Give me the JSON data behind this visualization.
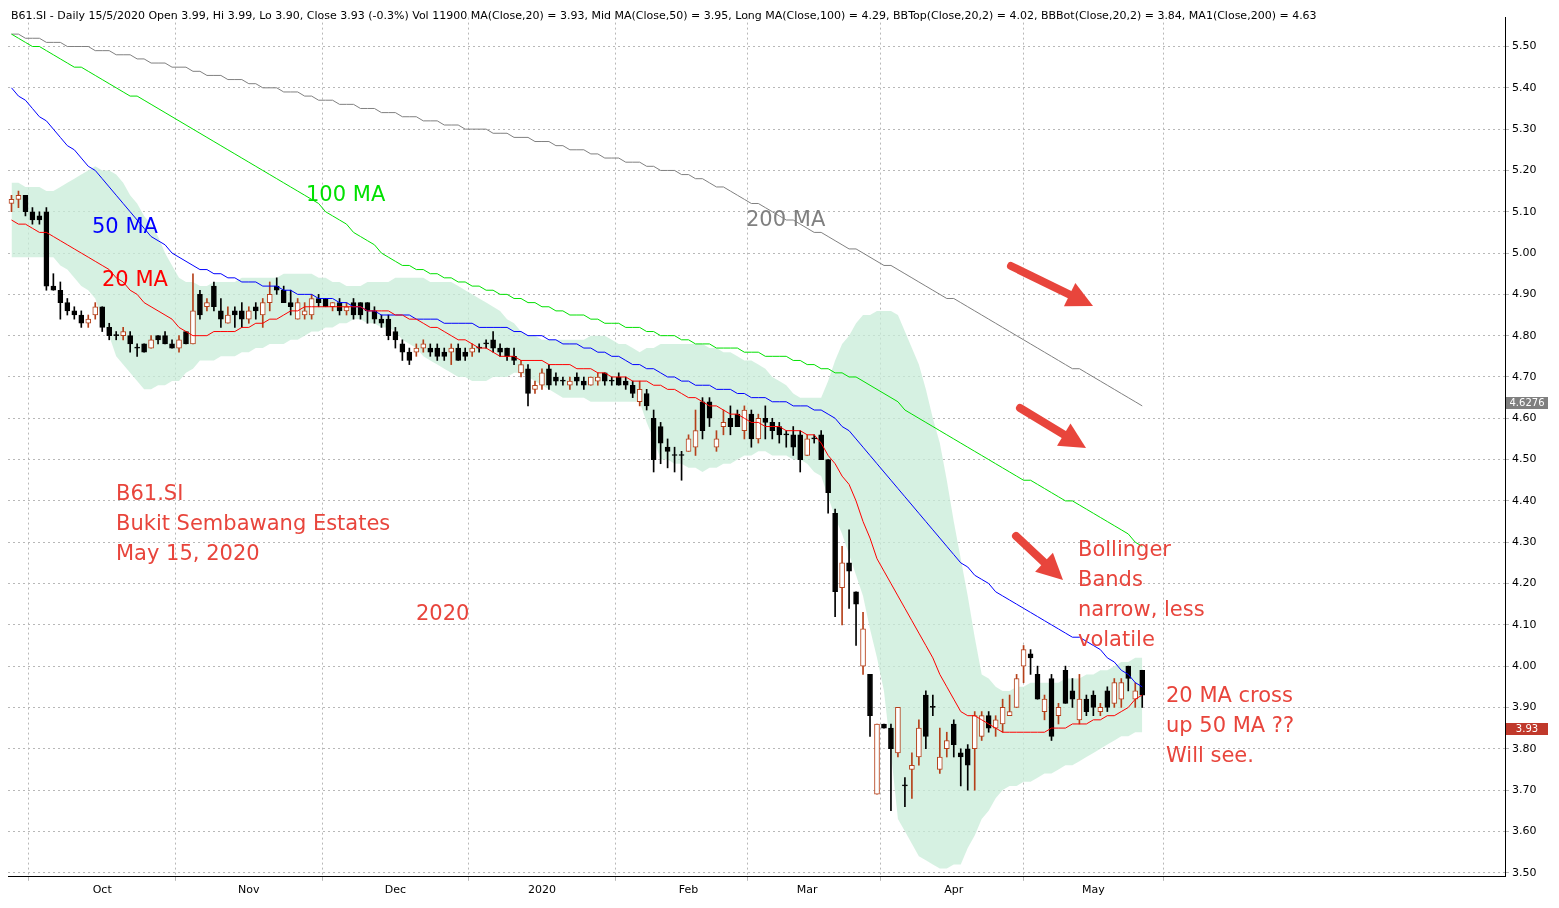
{
  "chart_data": {
    "type": "candlestick",
    "title": "B61.SI - Daily 15/5/2020 Open 3.99, Hi 3.99, Lo 3.90, Close 3.93 (-0.3%) Vol 11900 MA(Close,20) = 3.93, Mid MA(Close,50) = 3.95, Long MA(Close,100) = 4.29, BBTop(Close,20,2) = 4.02, BBBot(Close,20,2) = 3.84, MA1(Close,200) = 4.63",
    "categories": [
      null,
      null,
      null,
      null,
      null,
      null,
      null,
      null,
      null,
      null,
      null,
      null,
      null,
      "Oct",
      null,
      null,
      null,
      null,
      null,
      null,
      null,
      null,
      null,
      null,
      null,
      null,
      null,
      null,
      null,
      null,
      null,
      null,
      null,
      null,
      "Nov",
      null,
      null,
      null,
      null,
      null,
      null,
      null,
      null,
      null,
      null,
      null,
      null,
      null,
      null,
      null,
      null,
      null,
      null,
      null,
      null,
      "Dec",
      null,
      null,
      null,
      null,
      null,
      null,
      null,
      null,
      null,
      null,
      null,
      null,
      null,
      null,
      null,
      null,
      null,
      null,
      null,
      null,
      "2020",
      null,
      null,
      null,
      null,
      null,
      null,
      null,
      null,
      null,
      null,
      null,
      null,
      null,
      null,
      null,
      null,
      null,
      null,
      null,
      null,
      "Feb",
      null,
      null,
      null,
      null,
      null,
      null,
      null,
      null,
      null,
      null,
      null,
      null,
      null,
      null,
      null,
      null,
      "Mar",
      null,
      null,
      null,
      null,
      null,
      null,
      null,
      null,
      null,
      null,
      null,
      null,
      null,
      null,
      null,
      null,
      null,
      null,
      null,
      null,
      "Apr",
      null,
      null,
      null,
      null,
      null,
      null,
      null,
      null,
      null,
      null,
      null,
      null,
      null,
      null,
      null,
      null,
      null,
      null,
      null,
      "May",
      null,
      null,
      null,
      null,
      null,
      null,
      null
    ],
    "series": [
      {
        "ohlc": [
          [
            5.12,
            5.14,
            5.1,
            5.13
          ],
          [
            5.13,
            5.15,
            5.11,
            5.14
          ],
          [
            5.14,
            5.14,
            5.09,
            5.1
          ],
          [
            5.1,
            5.11,
            5.07,
            5.08
          ],
          [
            5.09,
            5.1,
            5.07,
            5.08
          ],
          [
            5.1,
            5.11,
            4.91,
            4.92
          ],
          [
            4.92,
            4.95,
            4.91,
            4.91
          ],
          [
            4.91,
            4.93,
            4.84,
            4.88
          ],
          [
            4.88,
            4.89,
            4.85,
            4.86
          ],
          [
            4.86,
            4.87,
            4.84,
            4.85
          ],
          [
            4.85,
            4.86,
            4.82,
            4.83
          ],
          [
            4.83,
            4.85,
            4.82,
            4.84
          ],
          [
            4.85,
            4.88,
            4.84,
            4.87
          ],
          [
            4.87,
            4.87,
            4.81,
            4.82
          ],
          [
            4.82,
            4.83,
            4.79,
            4.8
          ],
          [
            4.8,
            4.81,
            4.79,
            4.8
          ],
          [
            4.8,
            4.82,
            4.79,
            4.81
          ],
          [
            4.8,
            4.81,
            4.76,
            4.78
          ],
          [
            4.77,
            4.78,
            4.75,
            4.77
          ],
          [
            4.78,
            4.78,
            4.76,
            4.76
          ],
          [
            4.77,
            4.8,
            4.77,
            4.79
          ],
          [
            4.8,
            4.8,
            4.78,
            4.79
          ],
          [
            4.8,
            4.81,
            4.78,
            4.78
          ],
          [
            4.78,
            4.79,
            4.77,
            4.77
          ],
          [
            4.77,
            4.8,
            4.76,
            4.79
          ],
          [
            4.81,
            4.81,
            4.78,
            4.78
          ],
          [
            4.78,
            4.95,
            4.78,
            4.86
          ],
          [
            4.9,
            4.91,
            4.84,
            4.85
          ],
          [
            4.87,
            4.89,
            4.86,
            4.88
          ],
          [
            4.92,
            4.93,
            4.86,
            4.87
          ],
          [
            4.86,
            4.89,
            4.82,
            4.84
          ],
          [
            4.83,
            4.87,
            4.83,
            4.85
          ],
          [
            4.86,
            4.87,
            4.82,
            4.85
          ],
          [
            4.86,
            4.88,
            4.82,
            4.84
          ],
          [
            4.84,
            4.87,
            4.83,
            4.86
          ],
          [
            4.87,
            4.88,
            4.84,
            4.86
          ],
          [
            4.85,
            4.89,
            4.82,
            4.88
          ],
          [
            4.88,
            4.93,
            4.86,
            4.9
          ],
          [
            4.92,
            4.94,
            4.9,
            4.91
          ],
          [
            4.91,
            4.92,
            4.88,
            4.88
          ],
          [
            4.88,
            4.91,
            4.85,
            4.87
          ],
          [
            4.84,
            4.89,
            4.84,
            4.88
          ],
          [
            4.85,
            4.88,
            4.84,
            4.86
          ],
          [
            4.85,
            4.9,
            4.84,
            4.89
          ],
          [
            4.89,
            4.9,
            4.87,
            4.88
          ],
          [
            4.89,
            4.89,
            4.87,
            4.87
          ],
          [
            4.87,
            4.88,
            4.86,
            4.88
          ],
          [
            4.88,
            4.89,
            4.85,
            4.86
          ],
          [
            4.86,
            4.88,
            4.85,
            4.87
          ],
          [
            4.88,
            4.89,
            4.84,
            4.85
          ],
          [
            4.88,
            4.88,
            4.84,
            4.85
          ],
          [
            4.88,
            4.88,
            4.83,
            4.86
          ],
          [
            4.86,
            4.87,
            4.83,
            4.84
          ],
          [
            4.84,
            4.85,
            4.82,
            4.83
          ],
          [
            4.84,
            4.85,
            4.79,
            4.8
          ],
          [
            4.81,
            4.82,
            4.77,
            4.79
          ],
          [
            4.78,
            4.79,
            4.74,
            4.76
          ],
          [
            4.76,
            4.77,
            4.73,
            4.74
          ],
          [
            4.76,
            4.78,
            4.75,
            4.77
          ],
          [
            4.77,
            4.79,
            4.76,
            4.78
          ],
          [
            4.77,
            4.78,
            4.75,
            4.76
          ],
          [
            4.77,
            4.78,
            4.74,
            4.75
          ],
          [
            4.76,
            4.77,
            4.74,
            4.75
          ],
          [
            4.76,
            4.78,
            4.73,
            4.77
          ],
          [
            4.77,
            4.78,
            4.74,
            4.74
          ],
          [
            4.76,
            4.77,
            4.74,
            4.75
          ],
          [
            4.76,
            4.78,
            4.75,
            4.77
          ],
          [
            4.77,
            4.78,
            4.76,
            4.77
          ],
          [
            4.78,
            4.79,
            4.77,
            4.78
          ],
          [
            4.79,
            4.81,
            4.76,
            4.77
          ],
          [
            4.77,
            4.78,
            4.75,
            4.76
          ],
          [
            4.77,
            4.77,
            4.74,
            4.75
          ],
          [
            4.75,
            4.77,
            4.73,
            4.74
          ],
          [
            4.71,
            4.74,
            4.7,
            4.73
          ],
          [
            4.72,
            4.73,
            4.63,
            4.66
          ],
          [
            4.67,
            4.69,
            4.66,
            4.68
          ],
          [
            4.68,
            4.72,
            4.67,
            4.71
          ],
          [
            4.72,
            4.73,
            4.67,
            4.68
          ],
          [
            4.7,
            4.71,
            4.68,
            4.69
          ],
          [
            4.69,
            4.7,
            4.68,
            4.69
          ],
          [
            4.68,
            4.7,
            4.67,
            4.69
          ],
          [
            4.7,
            4.71,
            4.68,
            4.69
          ],
          [
            4.69,
            4.7,
            4.67,
            4.68
          ],
          [
            4.68,
            4.7,
            4.68,
            4.7
          ],
          [
            4.69,
            4.71,
            4.68,
            4.7
          ],
          [
            4.71,
            4.71,
            4.68,
            4.69
          ],
          [
            4.69,
            4.7,
            4.68,
            4.69
          ],
          [
            4.7,
            4.71,
            4.68,
            4.68
          ],
          [
            4.69,
            4.7,
            4.67,
            4.68
          ],
          [
            4.68,
            4.69,
            4.65,
            4.66
          ],
          [
            4.64,
            4.69,
            4.63,
            4.67
          ],
          [
            4.66,
            4.67,
            4.62,
            4.63
          ],
          [
            4.6,
            4.62,
            4.47,
            4.5
          ],
          [
            4.58,
            4.59,
            4.49,
            4.54
          ],
          [
            4.53,
            4.55,
            4.48,
            4.52
          ],
          [
            4.51,
            4.53,
            4.47,
            4.51
          ],
          [
            4.51,
            4.52,
            4.45,
            4.51
          ],
          [
            4.52,
            4.56,
            4.52,
            4.55
          ],
          [
            4.53,
            4.62,
            4.51,
            4.57
          ],
          [
            4.64,
            4.65,
            4.55,
            4.57
          ],
          [
            4.64,
            4.65,
            4.58,
            4.6
          ],
          [
            4.53,
            4.57,
            4.52,
            4.55
          ],
          [
            4.58,
            4.62,
            4.56,
            4.59
          ],
          [
            4.6,
            4.63,
            4.56,
            4.58
          ],
          [
            4.61,
            4.62,
            4.58,
            4.58
          ],
          [
            4.57,
            4.63,
            4.55,
            4.62
          ],
          [
            4.61,
            4.62,
            4.53,
            4.55
          ],
          [
            4.55,
            4.61,
            4.54,
            4.6
          ],
          [
            4.6,
            4.63,
            4.55,
            4.59
          ],
          [
            4.59,
            4.6,
            4.55,
            4.57
          ],
          [
            4.58,
            4.59,
            4.54,
            4.56
          ],
          [
            4.56,
            4.57,
            4.53,
            4.56
          ],
          [
            4.56,
            4.58,
            4.51,
            4.53
          ],
          [
            4.56,
            4.57,
            4.47,
            4.5
          ],
          [
            4.51,
            4.56,
            4.51,
            4.55
          ],
          [
            4.55,
            4.56,
            4.54,
            4.55
          ],
          [
            4.56,
            4.57,
            4.5,
            4.5
          ],
          [
            4.5,
            4.5,
            4.37,
            4.42
          ],
          [
            4.37,
            4.38,
            4.12,
            4.18
          ],
          [
            4.19,
            4.29,
            4.1,
            4.25
          ],
          [
            4.25,
            4.33,
            4.14,
            4.23
          ],
          [
            4.18,
            4.18,
            4.05,
            4.15
          ],
          [
            4.0,
            4.13,
            3.98,
            4.09
          ],
          [
            3.98,
            3.98,
            3.83,
            3.88
          ],
          [
            3.69,
            3.86,
            3.69,
            3.86
          ],
          [
            3.86,
            3.86,
            3.85,
            3.85
          ],
          [
            3.85,
            3.86,
            3.65,
            3.8
          ],
          [
            3.79,
            3.9,
            3.78,
            3.9
          ],
          [
            3.71,
            3.73,
            3.66,
            3.71
          ],
          [
            3.75,
            3.79,
            3.68,
            3.76
          ],
          [
            3.78,
            3.87,
            3.76,
            3.85
          ],
          [
            3.93,
            3.94,
            3.8,
            3.83
          ],
          [
            3.9,
            3.93,
            3.88,
            3.9
          ],
          [
            3.75,
            3.85,
            3.74,
            3.78
          ],
          [
            3.8,
            3.84,
            3.78,
            3.82
          ],
          [
            3.86,
            3.87,
            3.78,
            3.81
          ],
          [
            3.79,
            3.8,
            3.71,
            3.78
          ],
          [
            3.8,
            3.81,
            3.7,
            3.76
          ],
          [
            3.8,
            3.89,
            3.7,
            3.88
          ],
          [
            3.83,
            3.89,
            3.82,
            3.88
          ],
          [
            3.88,
            3.89,
            3.84,
            3.85
          ],
          [
            3.85,
            3.88,
            3.83,
            3.87
          ],
          [
            3.86,
            3.92,
            3.84,
            3.9
          ],
          [
            3.88,
            3.93,
            3.88,
            3.89
          ],
          [
            3.9,
            3.98,
            3.9,
            3.97
          ],
          [
            4.0,
            4.05,
            3.96,
            4.04
          ],
          [
            4.03,
            4.04,
            3.98,
            4.02
          ],
          [
            3.98,
            4.0,
            3.92,
            3.92
          ],
          [
            3.89,
            3.93,
            3.87,
            3.92
          ],
          [
            3.97,
            3.98,
            3.82,
            3.83
          ],
          [
            3.88,
            3.91,
            3.86,
            3.9
          ],
          [
            3.99,
            4.0,
            3.91,
            3.91
          ],
          [
            3.94,
            3.97,
            3.9,
            3.92
          ],
          [
            3.87,
            3.98,
            3.86,
            3.92
          ],
          [
            3.92,
            3.93,
            3.88,
            3.89
          ],
          [
            3.93,
            3.94,
            3.88,
            3.9
          ],
          [
            3.89,
            3.91,
            3.88,
            3.9
          ],
          [
            3.94,
            3.95,
            3.89,
            3.9
          ],
          [
            3.91,
            3.97,
            3.9,
            3.96
          ],
          [
            3.92,
            3.97,
            3.9,
            3.96
          ],
          [
            4.0,
            4.0,
            3.94,
            3.97
          ],
          [
            3.92,
            3.96,
            3.9,
            3.94
          ],
          [
            3.99,
            3.99,
            3.9,
            3.93
          ]
        ],
        "colors": [
          "#b5401a",
          "#b5401a",
          "#000000",
          "#000000",
          "#000000",
          "#000000",
          "#000000",
          "#000000",
          "#000000",
          "#000000",
          "#000000",
          "#b5401a",
          "#b5401a",
          "#000000",
          "#000000",
          "#000000",
          "#b5401a",
          "#000000",
          "#000000",
          "#000000",
          "#b5401a",
          "#000000",
          "#000000",
          "#000000",
          "#b5401a",
          "#000000",
          "#b5401a",
          "#000000",
          "#b5401a",
          "#000000",
          "#000000",
          "#b5401a",
          "#000000",
          "#000000",
          "#b5401a",
          "#000000",
          "#b5401a",
          "#b5401a",
          "#000000",
          "#000000",
          "#000000",
          "#b5401a",
          "#b5401a",
          "#b5401a",
          "#000000",
          "#000000",
          "#b5401a",
          "#000000",
          "#b5401a",
          "#000000",
          "#000000",
          "#000000",
          "#000000",
          "#000000",
          "#000000",
          "#000000",
          "#000000",
          "#000000",
          "#b5401a",
          "#b5401a",
          "#000000",
          "#000000",
          "#000000",
          "#b5401a",
          "#000000",
          "#000000",
          "#b5401a",
          "#000000",
          "#000000",
          "#000000",
          "#000000",
          "#000000",
          "#000000",
          "#b5401a",
          "#000000",
          "#b5401a",
          "#b5401a",
          "#000000",
          "#000000",
          "#000000",
          "#b5401a",
          "#000000",
          "#000000",
          "#b5401a",
          "#b5401a",
          "#000000",
          "#000000",
          "#000000",
          "#000000",
          "#000000",
          "#b5401a",
          "#000000",
          "#000000",
          "#000000",
          "#000000",
          "#000000",
          "#000000",
          "#b5401a",
          "#b5401a",
          "#000000",
          "#000000",
          "#b5401a",
          "#b5401a",
          "#000000",
          "#000000",
          "#b5401a",
          "#000000",
          "#b5401a",
          "#000000",
          "#000000",
          "#000000",
          "#000000",
          "#000000",
          "#000000",
          "#b5401a",
          "#000000",
          "#000000",
          "#000000",
          "#000000",
          "#b5401a",
          "#000000",
          "#000000",
          "#b5401a",
          "#000000",
          "#b5401a",
          "#000000",
          "#000000",
          "#b5401a",
          "#000000",
          "#b5401a",
          "#b5401a",
          "#000000",
          "#000000",
          "#b5401a",
          "#b5401a",
          "#000000",
          "#000000",
          "#000000",
          "#b5401a",
          "#b5401a",
          "#000000",
          "#b5401a",
          "#b5401a",
          "#b5401a",
          "#b5401a",
          "#b5401a",
          "#000000",
          "#000000",
          "#b5401a",
          "#000000",
          "#b5401a",
          "#000000",
          "#000000",
          "#b5401a",
          "#000000",
          "#000000",
          "#b5401a",
          "#000000",
          "#b5401a",
          "#b5401a",
          "#000000",
          "#b5401a",
          "#000000"
        ]
      },
      {
        "type": "line",
        "name": "20 MA",
        "color": "#ff0000",
        "values": [
          5.08,
          5.07,
          5.07,
          5.06,
          5.05,
          5.05,
          5.04,
          5.03,
          5.02,
          5.01,
          5.0,
          4.99,
          4.98,
          4.97,
          4.96,
          4.94,
          4.93,
          4.91,
          4.9,
          4.88,
          4.87,
          4.86,
          4.85,
          4.84,
          4.82,
          4.81,
          4.8,
          4.8,
          4.8,
          4.81,
          4.81,
          4.81,
          4.81,
          4.82,
          4.82,
          4.83,
          4.83,
          4.84,
          4.84,
          4.85,
          4.86,
          4.86,
          4.87,
          4.87,
          4.87,
          4.87,
          4.87,
          4.87,
          4.87,
          4.87,
          4.87,
          4.86,
          4.86,
          4.86,
          4.86,
          4.85,
          4.85,
          4.84,
          4.84,
          4.83,
          4.82,
          4.82,
          4.81,
          4.8,
          4.79,
          4.79,
          4.78,
          4.77,
          4.77,
          4.76,
          4.75,
          4.75,
          4.75,
          4.74,
          4.74,
          4.74,
          4.74,
          4.73,
          4.73,
          4.73,
          4.73,
          4.72,
          4.72,
          4.72,
          4.71,
          4.71,
          4.7,
          4.7,
          4.7,
          4.69,
          4.69,
          4.69,
          4.68,
          4.68,
          4.67,
          4.67,
          4.66,
          4.65,
          4.65,
          4.64,
          4.63,
          4.63,
          4.62,
          4.61,
          4.61,
          4.6,
          4.59,
          4.59,
          4.58,
          4.58,
          4.58,
          4.57,
          4.57,
          4.57,
          4.56,
          4.56,
          4.54,
          4.51,
          4.49,
          4.46,
          4.44,
          4.4,
          4.35,
          4.31,
          4.26,
          4.23,
          4.2,
          4.17,
          4.14,
          4.11,
          4.08,
          4.05,
          4.02,
          3.98,
          3.95,
          3.92,
          3.89,
          3.88,
          3.88,
          3.87,
          3.86,
          3.85,
          3.84,
          3.84,
          3.84,
          3.84,
          3.84,
          3.84,
          3.84,
          3.85,
          3.85,
          3.85,
          3.86,
          3.86,
          3.86,
          3.87,
          3.87,
          3.88,
          3.88,
          3.89,
          3.9,
          3.92,
          3.93
        ],
        "upper": [
          5.17,
          5.17,
          5.16,
          5.16,
          5.16,
          5.15,
          5.15,
          5.16,
          5.17,
          5.18,
          5.19,
          5.2,
          5.21,
          5.2,
          5.2,
          5.19,
          5.17,
          5.14,
          5.12,
          5.09,
          5.07,
          5.04,
          5.0,
          4.97,
          4.94,
          4.93,
          4.93,
          4.92,
          4.92,
          4.93,
          4.93,
          4.93,
          4.93,
          4.94,
          4.94,
          4.94,
          4.94,
          4.94,
          4.94,
          4.95,
          4.95,
          4.95,
          4.95,
          4.95,
          4.94,
          4.94,
          4.93,
          4.93,
          4.92,
          4.92,
          4.92,
          4.93,
          4.93,
          4.93,
          4.93,
          4.94,
          4.94,
          4.94,
          4.94,
          4.94,
          4.93,
          4.93,
          4.93,
          4.93,
          4.92,
          4.91,
          4.9,
          4.89,
          4.88,
          4.87,
          4.86,
          4.84,
          4.83,
          4.81,
          4.8,
          4.8,
          4.79,
          4.79,
          4.79,
          4.79,
          4.79,
          4.79,
          4.79,
          4.8,
          4.8,
          4.8,
          4.79,
          4.78,
          4.78,
          4.77,
          4.76,
          4.77,
          4.77,
          4.78,
          4.78,
          4.78,
          4.78,
          4.78,
          4.78,
          4.78,
          4.77,
          4.77,
          4.76,
          4.76,
          4.75,
          4.74,
          4.74,
          4.73,
          4.72,
          4.7,
          4.69,
          4.68,
          4.66,
          4.65,
          4.65,
          4.65,
          4.65,
          4.69,
          4.74,
          4.78,
          4.8,
          4.83,
          4.85,
          4.85,
          4.86,
          4.86,
          4.86,
          4.85,
          4.81,
          4.77,
          4.73,
          4.67,
          4.6,
          4.54,
          4.45,
          4.35,
          4.26,
          4.17,
          4.07,
          3.98,
          3.97,
          3.95,
          3.94,
          3.94,
          3.95,
          3.95,
          3.96,
          3.96,
          3.96,
          3.96,
          3.96,
          3.97,
          3.97,
          3.97,
          3.98,
          3.98,
          3.99,
          3.99,
          4.0,
          4.01,
          4.01,
          4.02,
          4.02
        ],
        "lower": [
          4.99,
          4.99,
          4.99,
          4.99,
          4.99,
          4.99,
          4.99,
          4.97,
          4.96,
          4.94,
          4.92,
          4.91,
          4.89,
          4.84,
          4.8,
          4.75,
          4.73,
          4.71,
          4.69,
          4.67,
          4.67,
          4.68,
          4.68,
          4.69,
          4.69,
          4.71,
          4.72,
          4.74,
          4.74,
          4.74,
          4.75,
          4.75,
          4.75,
          4.76,
          4.76,
          4.77,
          4.77,
          4.78,
          4.78,
          4.78,
          4.79,
          4.79,
          4.8,
          4.81,
          4.81,
          4.82,
          4.82,
          4.83,
          4.83,
          4.84,
          4.84,
          4.83,
          4.83,
          4.82,
          4.82,
          4.81,
          4.79,
          4.78,
          4.77,
          4.75,
          4.74,
          4.73,
          4.72,
          4.71,
          4.7,
          4.7,
          4.69,
          4.69,
          4.69,
          4.7,
          4.7,
          4.7,
          4.71,
          4.71,
          4.7,
          4.69,
          4.68,
          4.67,
          4.66,
          4.65,
          4.65,
          4.65,
          4.65,
          4.64,
          4.64,
          4.64,
          4.64,
          4.64,
          4.64,
          4.64,
          4.64,
          4.59,
          4.55,
          4.5,
          4.5,
          4.49,
          4.49,
          4.48,
          4.48,
          4.47,
          4.48,
          4.48,
          4.49,
          4.49,
          4.5,
          4.51,
          4.51,
          4.52,
          4.52,
          4.51,
          4.51,
          4.51,
          4.5,
          4.5,
          4.49,
          4.47,
          4.46,
          4.41,
          4.36,
          4.32,
          4.27,
          4.22,
          4.17,
          4.09,
          4.02,
          3.94,
          3.79,
          3.63,
          3.6,
          3.57,
          3.54,
          3.53,
          3.52,
          3.51,
          3.51,
          3.52,
          3.52,
          3.56,
          3.59,
          3.63,
          3.65,
          3.68,
          3.7,
          3.71,
          3.71,
          3.72,
          3.72,
          3.73,
          3.74,
          3.74,
          3.75,
          3.76,
          3.76,
          3.77,
          3.78,
          3.79,
          3.8,
          3.81,
          3.82,
          3.83,
          3.83,
          3.84,
          3.84
        ]
      },
      {
        "type": "line",
        "name": "50 MA",
        "color": "#0000ff",
        "values": [
          5.4,
          5.38,
          5.37,
          5.35,
          5.33,
          5.32,
          5.3,
          5.28,
          5.26,
          5.25,
          5.23,
          5.21,
          5.2,
          5.18,
          5.16,
          5.14,
          5.12,
          5.1,
          5.08,
          5.06,
          5.04,
          5.03,
          5.02,
          5.0,
          4.99,
          4.98,
          4.97,
          4.96,
          4.96,
          4.95,
          4.95,
          4.94,
          4.94,
          4.93,
          4.93,
          4.93,
          4.92,
          4.92,
          4.92,
          4.91,
          4.91,
          4.9,
          4.9,
          4.9,
          4.89,
          4.89,
          4.89,
          4.88,
          4.88,
          4.87,
          4.87,
          4.86,
          4.86,
          4.85,
          4.85,
          4.85,
          4.85,
          4.85,
          4.84,
          4.84,
          4.84,
          4.84,
          4.83,
          4.83,
          4.83,
          4.83,
          4.83,
          4.82,
          4.82,
          4.82,
          4.82,
          4.82,
          4.81,
          4.81,
          4.8,
          4.8,
          4.8,
          4.79,
          4.79,
          4.78,
          4.78,
          4.78,
          4.77,
          4.77,
          4.76,
          4.76,
          4.75,
          4.75,
          4.74,
          4.73,
          4.73,
          4.72,
          4.72,
          4.71,
          4.7,
          4.7,
          4.69,
          4.69,
          4.68,
          4.68,
          4.68,
          4.67,
          4.67,
          4.67,
          4.66,
          4.66,
          4.65,
          4.65,
          4.65,
          4.64,
          4.64,
          4.64,
          4.63,
          4.63,
          4.63,
          4.62,
          4.62,
          4.61,
          4.6,
          4.58,
          4.57,
          4.55,
          4.53,
          4.51,
          4.49,
          4.47,
          4.45,
          4.43,
          4.41,
          4.39,
          4.37,
          4.35,
          4.33,
          4.31,
          4.29,
          4.27,
          4.25,
          4.24,
          4.22,
          4.21,
          4.2,
          4.18,
          4.17,
          4.16,
          4.15,
          4.14,
          4.13,
          4.12,
          4.11,
          4.1,
          4.09,
          4.08,
          4.07,
          4.07,
          4.06,
          4.05,
          4.04,
          4.02,
          4.01,
          3.99,
          3.98,
          3.96,
          3.95
        ]
      },
      {
        "type": "line",
        "name": "100 MA",
        "color": "#00e000",
        "values": [
          5.53,
          5.52,
          5.51,
          5.5,
          5.5,
          5.49,
          5.48,
          5.47,
          5.46,
          5.45,
          5.45,
          5.44,
          5.43,
          5.42,
          5.41,
          5.4,
          5.39,
          5.38,
          5.38,
          5.37,
          5.36,
          5.35,
          5.34,
          5.33,
          5.32,
          5.31,
          5.3,
          5.29,
          5.28,
          5.27,
          5.26,
          5.25,
          5.24,
          5.23,
          5.22,
          5.21,
          5.2,
          5.19,
          5.18,
          5.17,
          5.16,
          5.15,
          5.14,
          5.13,
          5.12,
          5.1,
          5.09,
          5.08,
          5.07,
          5.05,
          5.04,
          5.03,
          5.02,
          5.0,
          4.99,
          4.98,
          4.97,
          4.97,
          4.96,
          4.96,
          4.95,
          4.95,
          4.94,
          4.94,
          4.93,
          4.93,
          4.92,
          4.92,
          4.91,
          4.91,
          4.9,
          4.9,
          4.89,
          4.89,
          4.88,
          4.88,
          4.87,
          4.87,
          4.86,
          4.86,
          4.85,
          4.85,
          4.85,
          4.84,
          4.84,
          4.83,
          4.83,
          4.83,
          4.82,
          4.82,
          4.82,
          4.81,
          4.81,
          4.8,
          4.8,
          4.8,
          4.79,
          4.79,
          4.78,
          4.78,
          4.78,
          4.77,
          4.77,
          4.77,
          4.77,
          4.76,
          4.76,
          4.76,
          4.75,
          4.75,
          4.75,
          4.75,
          4.74,
          4.74,
          4.73,
          4.73,
          4.72,
          4.72,
          4.71,
          4.71,
          4.7,
          4.7,
          4.69,
          4.68,
          4.67,
          4.66,
          4.65,
          4.64,
          4.62,
          4.61,
          4.6,
          4.59,
          4.58,
          4.57,
          4.56,
          4.55,
          4.54,
          4.53,
          4.52,
          4.51,
          4.5,
          4.49,
          4.48,
          4.47,
          4.46,
          4.45,
          4.45,
          4.44,
          4.43,
          4.42,
          4.41,
          4.4,
          4.4,
          4.39,
          4.38,
          4.37,
          4.36,
          4.35,
          4.34,
          4.33,
          4.32,
          4.3,
          4.29
        ]
      },
      {
        "type": "line",
        "name": "200 MA",
        "color": "#808080",
        "values": [
          5.53,
          5.53,
          5.52,
          5.52,
          5.52,
          5.51,
          5.51,
          5.51,
          5.5,
          5.5,
          5.5,
          5.5,
          5.49,
          5.49,
          5.49,
          5.48,
          5.48,
          5.48,
          5.47,
          5.47,
          5.46,
          5.46,
          5.46,
          5.45,
          5.45,
          5.45,
          5.44,
          5.44,
          5.43,
          5.43,
          5.43,
          5.42,
          5.42,
          5.42,
          5.41,
          5.41,
          5.4,
          5.4,
          5.4,
          5.39,
          5.39,
          5.39,
          5.38,
          5.38,
          5.37,
          5.37,
          5.37,
          5.36,
          5.36,
          5.36,
          5.35,
          5.35,
          5.35,
          5.34,
          5.34,
          5.34,
          5.33,
          5.33,
          5.33,
          5.32,
          5.32,
          5.32,
          5.31,
          5.31,
          5.31,
          5.3,
          5.3,
          5.3,
          5.3,
          5.29,
          5.29,
          5.29,
          5.28,
          5.28,
          5.28,
          5.27,
          5.27,
          5.27,
          5.26,
          5.26,
          5.25,
          5.25,
          5.25,
          5.24,
          5.24,
          5.23,
          5.23,
          5.23,
          5.22,
          5.22,
          5.22,
          5.21,
          5.21,
          5.2,
          5.2,
          5.2,
          5.19,
          5.19,
          5.18,
          5.18,
          5.17,
          5.16,
          5.16,
          5.15,
          5.14,
          5.13,
          5.12,
          5.12,
          5.11,
          5.1,
          5.09,
          5.08,
          5.08,
          5.07,
          5.06,
          5.05,
          5.05,
          5.04,
          5.03,
          5.02,
          5.01,
          5.01,
          5.0,
          4.99,
          4.98,
          4.97,
          4.97,
          4.96,
          4.95,
          4.94,
          4.93,
          4.92,
          4.91,
          4.9,
          4.89,
          4.89,
          4.88,
          4.87,
          4.86,
          4.85,
          4.84,
          4.83,
          4.82,
          4.81,
          4.8,
          4.79,
          4.78,
          4.77,
          4.76,
          4.75,
          4.74,
          4.73,
          4.72,
          4.72,
          4.71,
          4.7,
          4.69,
          4.68,
          4.67,
          4.66,
          4.65,
          4.64,
          4.63
        ]
      }
    ],
    "ylim": [
      3.49,
      5.57
    ],
    "yticks": [
      {
        "value": 3.5,
        "label": "3.50"
      },
      {
        "value": 3.6,
        "label": "3.60"
      },
      {
        "value": 3.7,
        "label": "3.70"
      },
      {
        "value": 3.8,
        "label": "3.80"
      },
      {
        "value": 3.9,
        "label": "3.90"
      },
      {
        "value": 4.0,
        "label": "4.00"
      },
      {
        "value": 4.1,
        "label": "4.10"
      },
      {
        "value": 4.2,
        "label": "4.20"
      },
      {
        "value": 4.3,
        "label": "4.30"
      },
      {
        "value": 4.4,
        "label": "4.40"
      },
      {
        "value": 4.5,
        "label": "4.50"
      },
      {
        "value": 4.6,
        "label": "4.60"
      },
      {
        "value": 4.7,
        "label": "4.70"
      },
      {
        "value": 4.8,
        "label": "4.80"
      },
      {
        "value": 4.9,
        "label": "4.90"
      },
      {
        "value": 5.0,
        "label": "5.00"
      },
      {
        "value": 5.1,
        "label": "5.10"
      },
      {
        "value": 5.2,
        "label": "5.20"
      },
      {
        "value": 5.3,
        "label": "5.30"
      },
      {
        "value": 5.4,
        "label": "5.40"
      },
      {
        "value": 5.5,
        "label": "5.50"
      }
    ],
    "grid": true,
    "annotations": [
      "4.6276",
      "3.93",
      "B61.SI",
      "Bukit Sembawang Estates",
      "May 15, 2020",
      "2020",
      "Bollinger Bands narrow, less volatile",
      "20 MA cross up 50 MA ?? Will see."
    ]
  }
}
